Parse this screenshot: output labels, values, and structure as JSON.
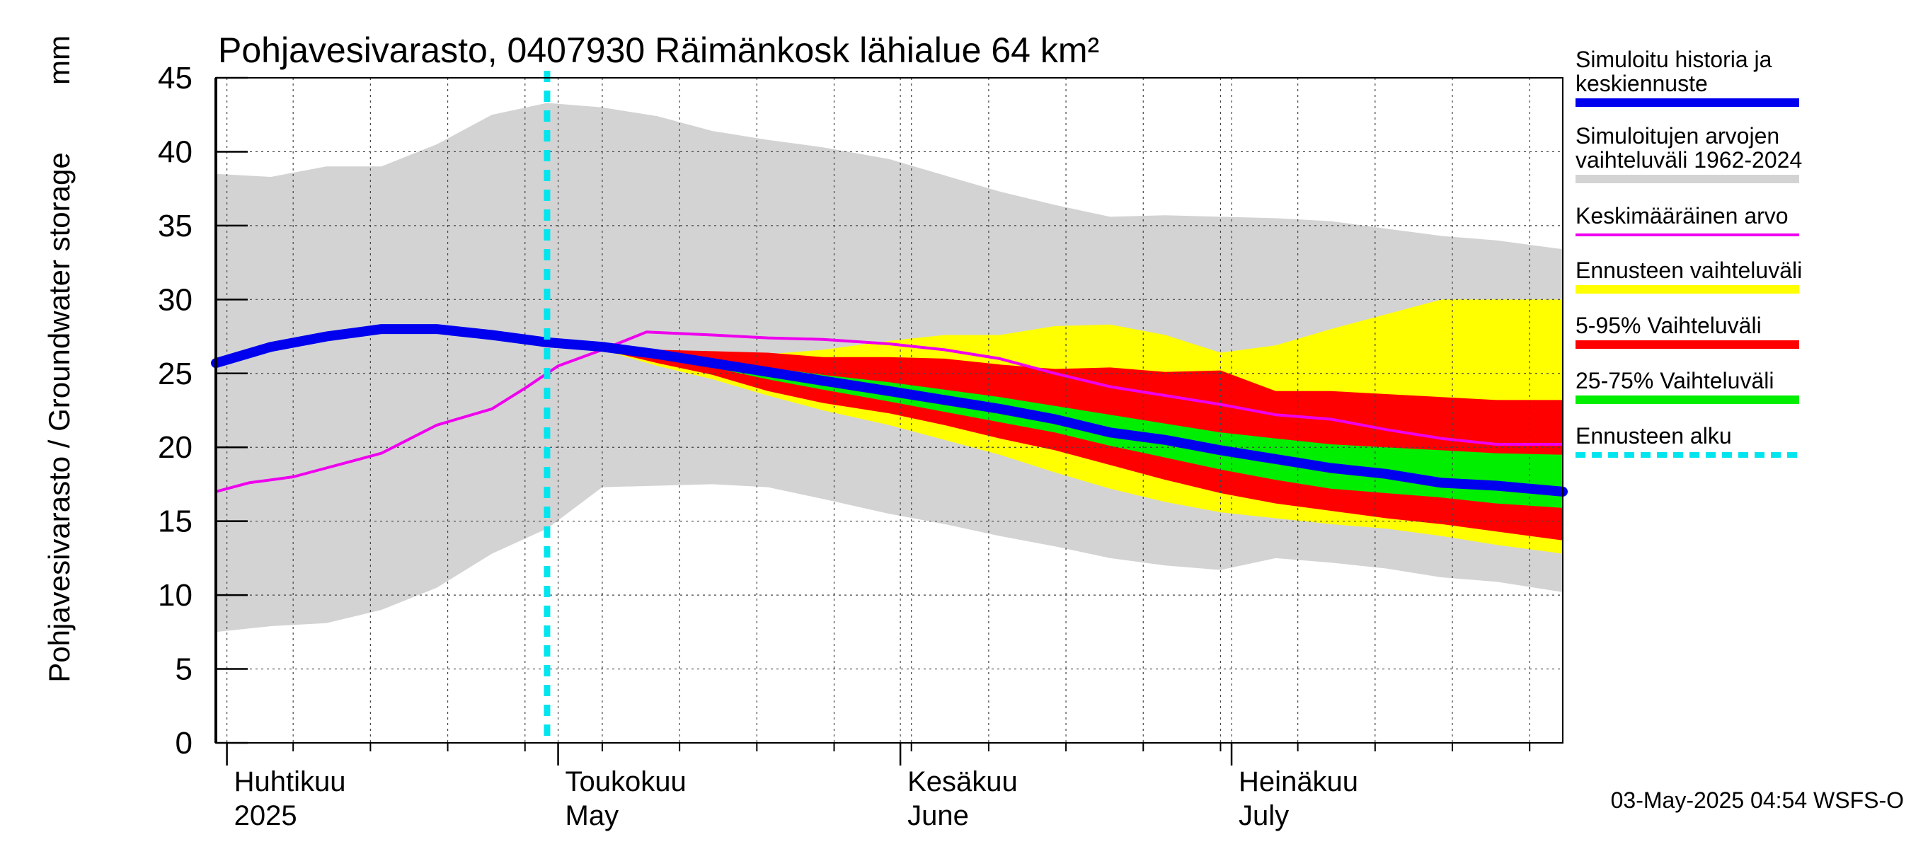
{
  "chart_data": {
    "type": "area",
    "title": "Pohjavesivarasto, 0407930 Räimänkosk lähialue 64 km²",
    "ylabel": "Pohjavesivarasto / Groundwater storage",
    "yunit": "mm",
    "ylim": [
      0,
      45
    ],
    "yticks": [
      0,
      5,
      10,
      15,
      20,
      25,
      30,
      35,
      40,
      45
    ],
    "xlim": [
      "2025-03-31",
      "2025-07-31"
    ],
    "grid": true,
    "legend_placement": "right",
    "month_labels": [
      {
        "date": "2025-04-01",
        "fi": "Huhtikuu",
        "en": "2025"
      },
      {
        "date": "2025-05-01",
        "fi": "Toukokuu",
        "en": "May"
      },
      {
        "date": "2025-06-01",
        "fi": "Kesäkuu",
        "en": "June"
      },
      {
        "date": "2025-07-01",
        "fi": "Heinäkuu",
        "en": "July"
      }
    ],
    "forecast_start": "2025-04-30",
    "series": [
      {
        "name": "Simuloitu historia ja keskiennuste",
        "color": "#0000ee",
        "x": [
          "2025-03-31",
          "2025-04-05",
          "2025-04-10",
          "2025-04-15",
          "2025-04-20",
          "2025-04-25",
          "2025-04-30",
          "2025-05-05",
          "2025-05-10",
          "2025-05-15",
          "2025-05-20",
          "2025-05-25",
          "2025-05-31",
          "2025-06-05",
          "2025-06-10",
          "2025-06-15",
          "2025-06-20",
          "2025-06-25",
          "2025-06-30",
          "2025-07-05",
          "2025-07-10",
          "2025-07-15",
          "2025-07-20",
          "2025-07-25",
          "2025-07-31"
        ],
        "y": [
          25.7,
          26.8,
          27.5,
          28.0,
          28.0,
          27.6,
          27.1,
          26.8,
          26.3,
          25.7,
          25.1,
          24.5,
          23.8,
          23.2,
          22.6,
          21.9,
          21.0,
          20.5,
          19.8,
          19.2,
          18.6,
          18.2,
          17.6,
          17.4,
          17.0
        ]
      },
      {
        "name": "Keskimääräinen arvo",
        "color": "#ee00ee",
        "x": [
          "2025-03-31",
          "2025-04-03",
          "2025-04-07",
          "2025-04-10",
          "2025-04-15",
          "2025-04-20",
          "2025-04-25",
          "2025-04-28",
          "2025-05-01",
          "2025-05-05",
          "2025-05-09",
          "2025-05-15",
          "2025-05-20",
          "2025-05-25",
          "2025-05-31",
          "2025-06-05",
          "2025-06-10",
          "2025-06-15",
          "2025-06-20",
          "2025-06-25",
          "2025-06-30",
          "2025-07-05",
          "2025-07-10",
          "2025-07-15",
          "2025-07-20",
          "2025-07-25",
          "2025-07-31"
        ],
        "y": [
          17.0,
          17.6,
          18.0,
          18.6,
          19.6,
          21.5,
          22.6,
          24.0,
          25.5,
          26.6,
          27.8,
          27.6,
          27.4,
          27.3,
          27.0,
          26.6,
          26.0,
          25.0,
          24.1,
          23.5,
          22.9,
          22.2,
          21.9,
          21.2,
          20.6,
          20.2,
          20.2
        ]
      }
    ],
    "bands": [
      {
        "name": "Simuloitujen arvojen vaihteluväli 1962-2024",
        "color": "#d3d3d3",
        "x": [
          "2025-03-31",
          "2025-04-05",
          "2025-04-10",
          "2025-04-15",
          "2025-04-20",
          "2025-04-25",
          "2025-04-30",
          "2025-05-05",
          "2025-05-10",
          "2025-05-15",
          "2025-05-20",
          "2025-05-25",
          "2025-05-31",
          "2025-06-05",
          "2025-06-10",
          "2025-06-15",
          "2025-06-20",
          "2025-06-25",
          "2025-06-30",
          "2025-07-05",
          "2025-07-10",
          "2025-07-15",
          "2025-07-20",
          "2025-07-25",
          "2025-07-31"
        ],
        "upper": [
          38.5,
          38.3,
          39.0,
          39.0,
          40.5,
          42.5,
          43.3,
          43.0,
          42.4,
          41.4,
          40.8,
          40.3,
          39.5,
          38.4,
          37.3,
          36.4,
          35.6,
          35.7,
          35.6,
          35.5,
          35.3,
          34.8,
          34.3,
          34.0,
          33.4
        ],
        "lower": [
          7.5,
          7.9,
          8.1,
          9.0,
          10.5,
          12.8,
          14.5,
          17.3,
          17.4,
          17.5,
          17.3,
          16.5,
          15.5,
          14.8,
          14.0,
          13.3,
          12.5,
          12.0,
          11.7,
          12.5,
          12.2,
          11.8,
          11.2,
          10.9,
          10.2
        ]
      },
      {
        "name": "Ennusteen vaihteluväli",
        "color": "#ffff00",
        "x": [
          "2025-04-30",
          "2025-05-05",
          "2025-05-10",
          "2025-05-15",
          "2025-05-20",
          "2025-05-25",
          "2025-05-31",
          "2025-06-05",
          "2025-06-10",
          "2025-06-15",
          "2025-06-20",
          "2025-06-25",
          "2025-06-30",
          "2025-07-05",
          "2025-07-10",
          "2025-07-15",
          "2025-07-20",
          "2025-07-25",
          "2025-07-31"
        ],
        "upper": [
          27.1,
          26.9,
          26.6,
          26.4,
          26.3,
          26.6,
          27.2,
          27.6,
          27.6,
          28.2,
          28.3,
          27.6,
          26.4,
          26.9,
          28.0,
          29.0,
          30.0,
          30.0,
          30.0
        ],
        "lower": [
          27.1,
          26.6,
          25.5,
          24.6,
          23.5,
          22.5,
          21.5,
          20.5,
          19.5,
          18.3,
          17.2,
          16.3,
          15.6,
          15.2,
          14.8,
          14.5,
          14.0,
          13.4,
          12.8
        ]
      },
      {
        "name": "5-95% Vaihteluväli",
        "color": "#ff0000",
        "x": [
          "2025-04-30",
          "2025-05-05",
          "2025-05-10",
          "2025-05-15",
          "2025-05-20",
          "2025-05-25",
          "2025-05-31",
          "2025-06-05",
          "2025-06-10",
          "2025-06-15",
          "2025-06-20",
          "2025-06-25",
          "2025-06-30",
          "2025-07-05",
          "2025-07-10",
          "2025-07-15",
          "2025-07-20",
          "2025-07-25",
          "2025-07-31"
        ],
        "upper": [
          27.1,
          26.9,
          26.6,
          26.5,
          26.4,
          26.1,
          26.1,
          26.0,
          25.6,
          25.3,
          25.4,
          25.1,
          25.2,
          23.8,
          23.8,
          23.6,
          23.4,
          23.2,
          23.2
        ],
        "lower": [
          27.1,
          26.6,
          25.7,
          24.9,
          23.8,
          23.0,
          22.3,
          21.5,
          20.6,
          19.8,
          18.8,
          17.8,
          16.9,
          16.2,
          15.7,
          15.2,
          14.8,
          14.3,
          13.7
        ]
      },
      {
        "name": "25-75% Vaihteluväli",
        "color": "#00ee00",
        "x": [
          "2025-04-30",
          "2025-05-05",
          "2025-05-10",
          "2025-05-15",
          "2025-05-20",
          "2025-05-25",
          "2025-05-31",
          "2025-06-05",
          "2025-06-10",
          "2025-06-15",
          "2025-06-20",
          "2025-06-25",
          "2025-06-30",
          "2025-07-05",
          "2025-07-10",
          "2025-07-15",
          "2025-07-20",
          "2025-07-25",
          "2025-07-31"
        ],
        "upper": [
          27.1,
          26.8,
          26.4,
          25.9,
          25.4,
          24.9,
          24.4,
          23.9,
          23.4,
          22.8,
          22.2,
          21.6,
          21.0,
          20.6,
          20.2,
          20.0,
          19.8,
          19.6,
          19.5
        ],
        "lower": [
          27.1,
          26.7,
          26.1,
          25.4,
          24.6,
          23.9,
          23.1,
          22.4,
          21.7,
          21.0,
          20.1,
          19.3,
          18.5,
          17.8,
          17.2,
          16.9,
          16.6,
          16.2,
          15.9
        ]
      }
    ],
    "legend": [
      {
        "label": "Simuloitu historia ja keskiennuste",
        "color": "#0000ee",
        "style": "thick"
      },
      {
        "label": "Simuloitujen arvojen vaihteluväli 1962-2024",
        "color": "#d3d3d3",
        "style": "thick"
      },
      {
        "label": "Keskimääräinen arvo",
        "color": "#ee00ee",
        "style": "thin"
      },
      {
        "label": "Ennusteen vaihteluväli",
        "color": "#ffff00",
        "style": "thick"
      },
      {
        "label": "5-95% Vaihteluväli",
        "color": "#ff0000",
        "style": "thick"
      },
      {
        "label": "25-75% Vaihteluväli",
        "color": "#00ee00",
        "style": "thick"
      },
      {
        "label": "Ennusteen alku",
        "color": "#00e5ee",
        "style": "dashed"
      }
    ],
    "footer": "03-May-2025 04:54 WSFS-O"
  }
}
